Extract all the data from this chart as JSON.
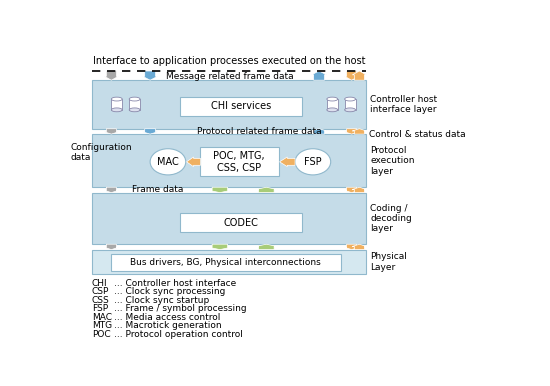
{
  "title": "Interface to application processes executed on the host",
  "bg_color": "#ffffff",
  "layer_bg_chi": "#c5dce8",
  "layer_bg_proto": "#c5dce8",
  "layer_bg_codec": "#c5dce8",
  "layer_bg_phys": "#d5e8f0",
  "white": "#ffffff",
  "gray_arrow": "#a8a8a8",
  "blue_arrow": "#6aaad4",
  "orange_arrow": "#f0b060",
  "green_arrow": "#a8cc78",
  "legend_items": [
    {
      "abbr": "CHI",
      "desc": "Controller host interface"
    },
    {
      "abbr": "CSP",
      "desc": "Clock sync processing"
    },
    {
      "abbr": "CSS",
      "desc": "Clock sync startup"
    },
    {
      "abbr": "FSP",
      "desc": "Frame / symbol processing"
    },
    {
      "abbr": "MAC",
      "desc": "Media access control"
    },
    {
      "abbr": "MTG",
      "desc": "Macrotick generation"
    },
    {
      "abbr": "POC",
      "desc": "Protocol operation control"
    }
  ]
}
